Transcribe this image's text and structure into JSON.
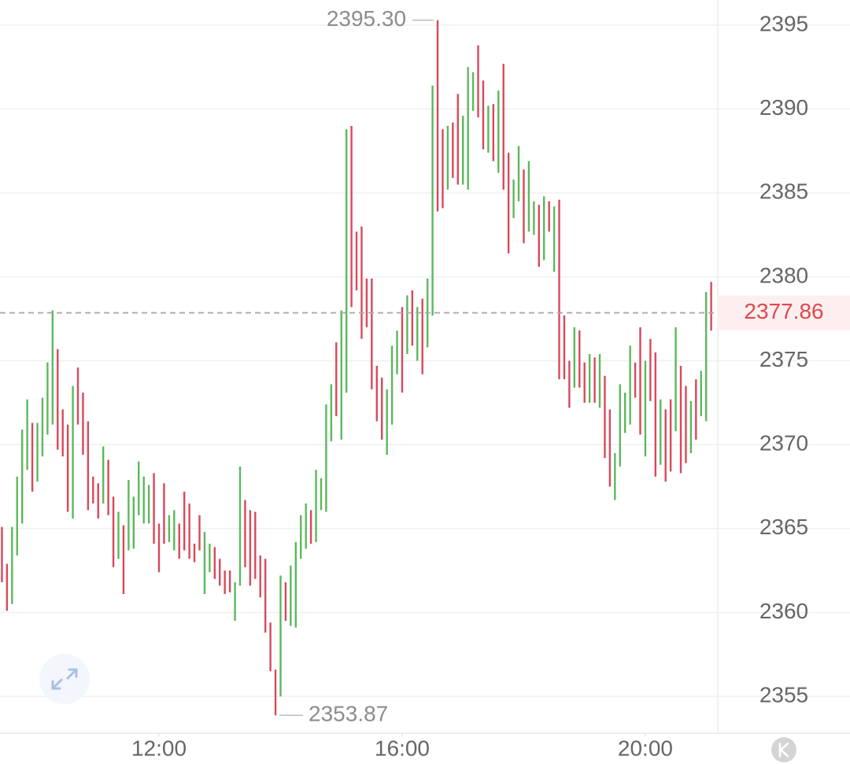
{
  "chart_data": {
    "type": "range-bar",
    "x": [
      565,
      570,
      575,
      580,
      585,
      590,
      595,
      600,
      605,
      610,
      615,
      620,
      625,
      630,
      635,
      640,
      645,
      650,
      655,
      660,
      665,
      670,
      675,
      680,
      685,
      690,
      695,
      700,
      705,
      710,
      715,
      720,
      725,
      730,
      735,
      740,
      745,
      750,
      755,
      760,
      765,
      770,
      775,
      780,
      785,
      790,
      795,
      800,
      805,
      810,
      815,
      820,
      825,
      830,
      835,
      840,
      845,
      850,
      855,
      860,
      865,
      870,
      875,
      880,
      885,
      890,
      895,
      900,
      905,
      910,
      915,
      920,
      925,
      930,
      935,
      940,
      945,
      950,
      955,
      960,
      965,
      970,
      975,
      980,
      985,
      990,
      995,
      1000,
      1005,
      1010,
      1015,
      1020,
      1025,
      1030,
      1035,
      1040,
      1045,
      1050,
      1055,
      1060,
      1065,
      1070,
      1075,
      1080,
      1085,
      1090,
      1095,
      1100,
      1105,
      1110,
      1115,
      1120,
      1125,
      1130,
      1135,
      1140,
      1145,
      1150,
      1155,
      1160,
      1165,
      1170,
      1175,
      1180,
      1185,
      1190,
      1195,
      1200,
      1205,
      1210,
      1215,
      1220,
      1225,
      1230,
      1235,
      1240,
      1245,
      1250,
      1255,
      1260,
      1265
    ],
    "high": [
      2365.1,
      2362.9,
      2365.1,
      2368.1,
      2370.9,
      2372.7,
      2371.3,
      2371.3,
      2372.8,
      2374.9,
      2378.0,
      2375.7,
      2372.1,
      2371.2,
      2373.5,
      2374.6,
      2373.1,
      2371.4,
      2368.1,
      2367.7,
      2369.9,
      2369.1,
      2366.9,
      2366.0,
      2365.2,
      2367.9,
      2366.9,
      2369.0,
      2368.1,
      2367.6,
      2368.3,
      2365.3,
      2367.7,
      2365.8,
      2366.1,
      2365.3,
      2367.2,
      2366.5,
      2364.1,
      2365.8,
      2364.8,
      2364.1,
      2363.9,
      2363.2,
      2362.5,
      2362.5,
      2361.8,
      2368.7,
      2366.7,
      2366.1,
      2366.0,
      2363.4,
      2363.2,
      2359.4,
      2356.6,
      2362.2,
      2361.8,
      2362.8,
      2364.2,
      2365.8,
      2366.5,
      2366.1,
      2368.5,
      2368.0,
      2372.4,
      2373.6,
      2376.1,
      2378.0,
      2388.8,
      2389.0,
      2382.7,
      2383.0,
      2379.9,
      2379.9,
      2374.7,
      2374.0,
      2373.3,
      2375.9,
      2376.8,
      2378.2,
      2378.9,
      2379.2,
      2378.2,
      2378.7,
      2379.9,
      2391.4,
      2395.3,
      2388.8,
      2389.0,
      2389.2,
      2390.9,
      2389.6,
      2392.5,
      2392.2,
      2393.8,
      2391.7,
      2390.2,
      2390.3,
      2391.1,
      2392.7,
      2387.4,
      2385.8,
      2387.8,
      2386.4,
      2386.9,
      2384.5,
      2384.3,
      2384.8,
      2384.5,
      2384.2,
      2384.6,
      2377.7,
      2375.0,
      2377.0,
      2376.8,
      2374.9,
      2375.4,
      2375.2,
      2375.4,
      2374.1,
      2372.1,
      2369.5,
      2373.6,
      2373.1,
      2375.9,
      2374.9,
      2377.0,
      2375.0,
      2376.3,
      2375.5,
      2372.7,
      2372.1,
      2372.7,
      2377.0,
      2374.7,
      2373.5,
      2372.6,
      2373.9,
      2374.4,
      2379.1,
      2379.7
    ],
    "low": [
      2361.8,
      2360.1,
      2360.5,
      2363.4,
      2365.3,
      2368.5,
      2367.2,
      2367.8,
      2369.3,
      2370.6,
      2371.2,
      2369.7,
      2369.3,
      2366.0,
      2365.6,
      2371.2,
      2369.4,
      2366.1,
      2366.5,
      2365.6,
      2366.5,
      2365.8,
      2362.7,
      2363.2,
      2361.1,
      2363.7,
      2363.8,
      2365.8,
      2365.3,
      2365.3,
      2364.1,
      2362.4,
      2364.1,
      2364.2,
      2363.7,
      2363.2,
      2363.7,
      2363.2,
      2363.0,
      2363.7,
      2361.1,
      2362.4,
      2362.0,
      2361.6,
      2361.1,
      2361.2,
      2359.5,
      2361.6,
      2362.7,
      2361.6,
      2362.0,
      2360.9,
      2358.8,
      2356.5,
      2353.87,
      2355.0,
      2359.5,
      2359.2,
      2359.1,
      2363.2,
      2363.8,
      2364.1,
      2364.2,
      2366.1,
      2366.0,
      2370.2,
      2371.7,
      2370.3,
      2373.1,
      2378.2,
      2379.2,
      2376.3,
      2377.0,
      2373.3,
      2371.4,
      2370.3,
      2369.4,
      2371.2,
      2374.2,
      2373.1,
      2375.4,
      2375.9,
      2375.0,
      2374.2,
      2375.8,
      2377.7,
      2383.9,
      2384.1,
      2385.2,
      2385.9,
      2385.5,
      2385.5,
      2385.2,
      2389.9,
      2389.5,
      2387.6,
      2387.4,
      2386.9,
      2386.2,
      2385.2,
      2381.4,
      2383.5,
      2384.5,
      2382.0,
      2382.7,
      2382.5,
      2380.6,
      2381.0,
      2382.7,
      2380.3,
      2373.9,
      2373.9,
      2372.2,
      2373.4,
      2373.4,
      2372.5,
      2372.5,
      2372.5,
      2372.2,
      2369.2,
      2367.5,
      2366.7,
      2368.7,
      2370.7,
      2371.2,
      2372.8,
      2370.6,
      2369.3,
      2372.6,
      2368.1,
      2368.8,
      2367.8,
      2368.4,
      2370.8,
      2368.3,
      2368.9,
      2369.5,
      2370.3,
      2371.7,
      2371.4,
      2376.8
    ],
    "rising": [
      false,
      false,
      true,
      true,
      true,
      true,
      false,
      true,
      true,
      true,
      true,
      false,
      false,
      false,
      true,
      false,
      false,
      false,
      false,
      false,
      true,
      false,
      false,
      true,
      false,
      true,
      true,
      true,
      true,
      true,
      false,
      false,
      false,
      true,
      true,
      false,
      false,
      false,
      false,
      false,
      true,
      true,
      false,
      false,
      false,
      false,
      true,
      true,
      false,
      false,
      false,
      false,
      false,
      false,
      false,
      true,
      false,
      true,
      true,
      true,
      true,
      false,
      true,
      true,
      true,
      true,
      false,
      true,
      true,
      false,
      false,
      false,
      false,
      false,
      false,
      false,
      true,
      true,
      true,
      false,
      true,
      false,
      true,
      false,
      true,
      true,
      false,
      false,
      true,
      false,
      false,
      true,
      true,
      true,
      false,
      false,
      true,
      false,
      true,
      false,
      false,
      true,
      true,
      false,
      true,
      true,
      false,
      true,
      false,
      true,
      false,
      false,
      false,
      true,
      false,
      false,
      true,
      false,
      true,
      false,
      false,
      true,
      true,
      true,
      true,
      false,
      false,
      true,
      false,
      false,
      true,
      false,
      false,
      true,
      false,
      false,
      true,
      false,
      true,
      true,
      false
    ],
    "up_color": "#5cb85c",
    "down_color": "#d9485a",
    "xlim": [
      563.1,
      1271.5
    ],
    "xticks": [
      {
        "value": 720,
        "label": "12:00"
      },
      {
        "value": 960,
        "label": "16:00"
      },
      {
        "value": 1200,
        "label": "20:00"
      }
    ],
    "ylim": [
      2352.8,
      2396.5
    ],
    "yticks": [
      2355,
      2360,
      2365,
      2370,
      2375,
      2380,
      2385,
      2390,
      2395
    ],
    "grid": true,
    "high_annotation": {
      "value": 2395.3,
      "label": "2395.30"
    },
    "low_annotation": {
      "value": 2353.87,
      "label": "2353.87"
    },
    "last_price": 2377.86,
    "last_price_color": "#e0474c"
  }
}
